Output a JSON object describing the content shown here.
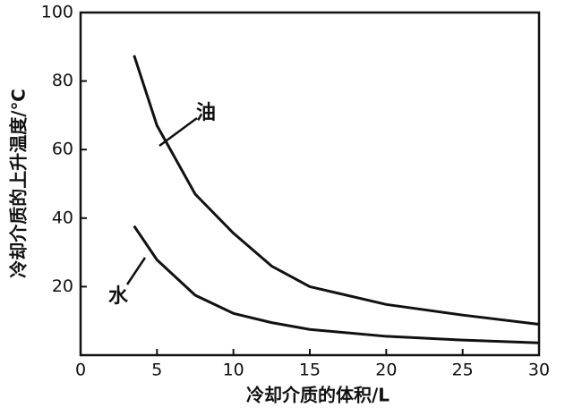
{
  "chart_data": {
    "type": "line",
    "xlabel": "冷却介质的体积/L",
    "ylabel": "冷却介质的上升温度/℃",
    "x": [
      3.5,
      5,
      7.5,
      10,
      12.5,
      15,
      20,
      25,
      30
    ],
    "series": [
      {
        "name": "油",
        "color": "#111111",
        "values": [
          87.5,
          67,
          47,
          35.6,
          26,
          20,
          14.8,
          11.7,
          9
        ]
      },
      {
        "name": "水",
        "color": "#111111",
        "values": [
          37.7,
          27.8,
          17.5,
          12.2,
          9.5,
          7.5,
          5.5,
          4.4,
          3.6
        ]
      }
    ],
    "xlim": [
      0,
      30
    ],
    "xticks": [
      0,
      5,
      10,
      15,
      20,
      25,
      30
    ],
    "ylim": [
      0,
      100
    ],
    "yticks": [
      20,
      40,
      60,
      80,
      100
    ],
    "grid": false
  }
}
